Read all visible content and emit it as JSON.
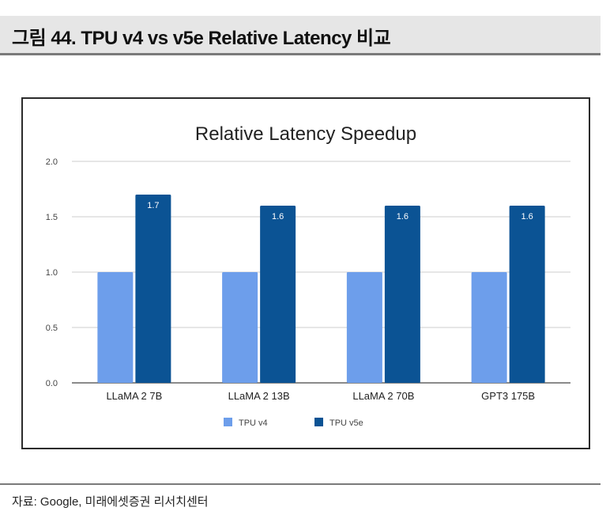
{
  "figure": {
    "title": "그림 44. TPU v4 vs v5e Relative Latency 비교",
    "source": "자료: Google, 미래에셋증권 리서치센터"
  },
  "colors": {
    "header_bg": "#e6e6e6",
    "rule": "#7a7a7a",
    "series_v4": "#6d9eeb",
    "series_v5e": "#0b5394",
    "grid": "#cccccc",
    "text": "#222222"
  },
  "chart_data": {
    "type": "bar",
    "title": "Relative Latency Speedup",
    "xlabel": "",
    "ylabel": "",
    "categories": [
      "LLaMA 2 7B",
      "LLaMA 2 13B",
      "LLaMA 2 70B",
      "GPT3 175B"
    ],
    "series": [
      {
        "name": "TPU v4",
        "color": "#6d9eeb",
        "values": [
          1.0,
          1.0,
          1.0,
          1.0
        ],
        "labels": [
          "",
          "",
          "",
          ""
        ]
      },
      {
        "name": "TPU v5e",
        "color": "#0b5394",
        "values": [
          1.7,
          1.6,
          1.6,
          1.6
        ],
        "labels": [
          "1.7",
          "1.6",
          "1.6",
          "1.6"
        ]
      }
    ],
    "ylim": [
      0,
      2.0
    ],
    "yticks": [
      "0.0",
      "0.5",
      "1.0",
      "1.5",
      "2.0"
    ],
    "grid": true,
    "legend_position": "bottom-center"
  }
}
